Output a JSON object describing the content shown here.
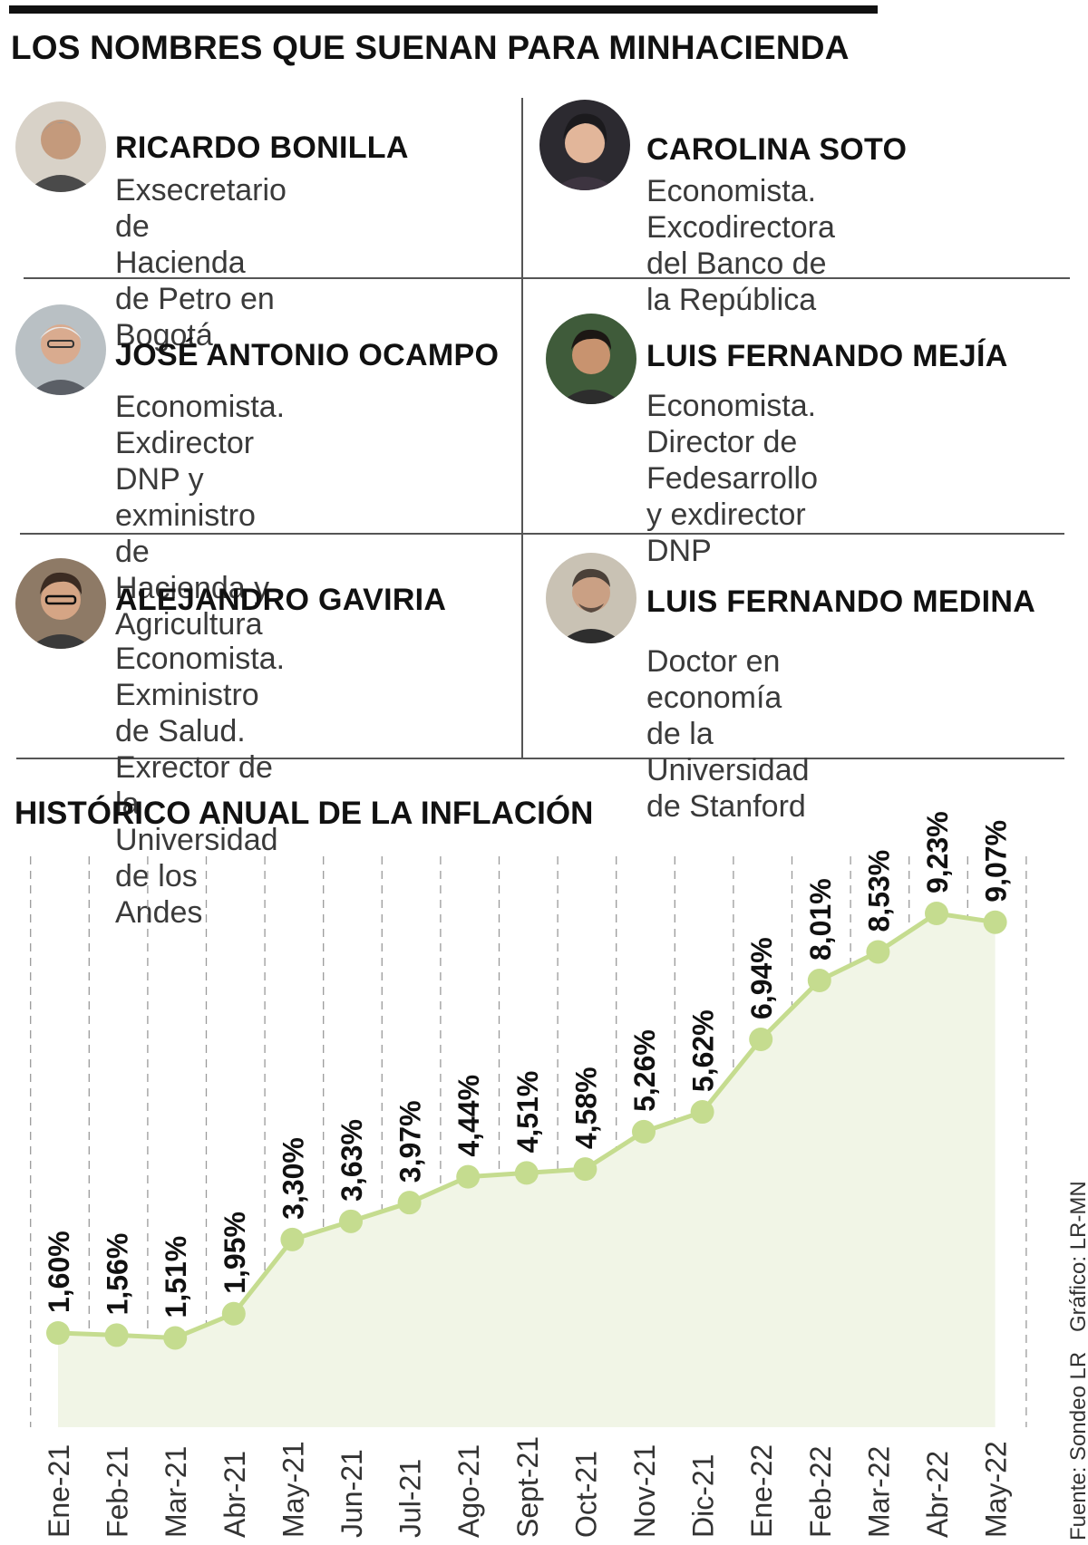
{
  "title": "LOS NOMBRES QUE SUENAN PARA MINHACIENDA",
  "people": [
    {
      "name": "RICARDO BONILLA",
      "description": "Exsecretario de Hacienda\nde Petro en Bogotá",
      "avatar": "ricardo-bonilla-photo"
    },
    {
      "name": "CAROLINA SOTO",
      "description": "Economista. Excodirectora\ndel Banco de la República",
      "avatar": "carolina-soto-photo"
    },
    {
      "name": "JOSÉ ANTONIO OCAMPO",
      "description": "Economista. Exdirector\nDNP y exministro de\nHacienda y Agricultura",
      "avatar": "jose-antonio-ocampo-photo"
    },
    {
      "name": "LUIS FERNANDO MEJÍA",
      "description": "Economista. Director de\nFedesarrollo y exdirector DNP",
      "avatar": "luis-fernando-mejia-photo"
    },
    {
      "name": "ALEJANDRO GAVIRIA",
      "description": "Economista. Exministro\nde Salud. Exrector de la\nUniversidad de los Andes",
      "avatar": "alejandro-gaviria-photo"
    },
    {
      "name": "LUIS FERNANDO MEDINA",
      "description": "Doctor en economía de la\nUniversidad de Stanford",
      "avatar": "luis-fernando-medina-photo"
    }
  ],
  "colors": {
    "line": "#c5dc8f",
    "area": "#f1f5e6",
    "text": "#111111",
    "grid": "#9a9a9a"
  },
  "chart_data": {
    "type": "line",
    "title": "HISTÓRICO ANUAL DE LA INFLACIÓN",
    "categories": [
      "Ene-21",
      "Feb-21",
      "Mar-21",
      "Abr-21",
      "May-21",
      "Jun-21",
      "Jul-21",
      "Ago-21",
      "Sept-21",
      "Oct-21",
      "Nov-21",
      "Dic-21",
      "Ene-22",
      "Feb-22",
      "Mar-22",
      "Abr-22",
      "May-22"
    ],
    "values": [
      1.6,
      1.56,
      1.51,
      1.95,
      3.3,
      3.63,
      3.97,
      4.44,
      4.51,
      4.58,
      5.26,
      5.62,
      6.94,
      8.01,
      8.53,
      9.23,
      9.07
    ],
    "labels": [
      "1,60%",
      "1,56%",
      "1,51%",
      "1,95%",
      "3,30%",
      "3,63%",
      "3,97%",
      "4,44%",
      "4,51%",
      "4,58%",
      "5,26%",
      "5,62%",
      "6,94%",
      "8,01%",
      "8,53%",
      "9,23%",
      "9,07%"
    ],
    "xlabel": "",
    "ylabel": "",
    "ylim": [
      0,
      10
    ],
    "grid": "vertical dashed",
    "legend": "none"
  },
  "source": "Fuente: Sondeo LR",
  "credit": "Gráfico: LR-MN"
}
